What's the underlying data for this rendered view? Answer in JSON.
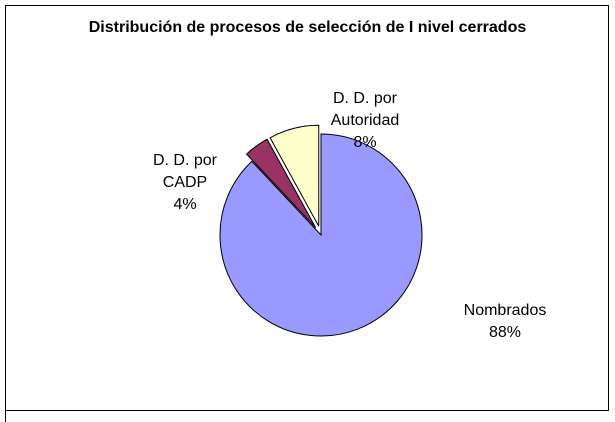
{
  "chart_data": {
    "type": "pie",
    "title": "Distribución de procesos de selección de I nivel cerrados",
    "categories": [
      "Nombrados",
      "D. D. por CADP",
      "D. D. por Autoridad"
    ],
    "values": [
      88,
      4,
      8
    ],
    "value_labels": [
      "88%",
      "4%",
      "8%"
    ],
    "colors": [
      "#9999ff",
      "#993366",
      "#ffffcc"
    ]
  }
}
